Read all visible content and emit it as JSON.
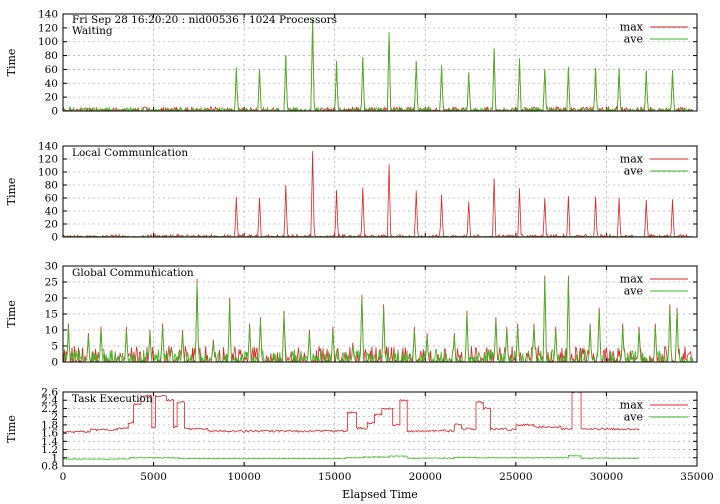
{
  "figure_title": "Fri Sep 28 16:20:20 : nid00536 : 1024 Processors",
  "chart_data": [
    {
      "type": "line",
      "title": "Waiting",
      "xlabel": "",
      "ylabel": "Time",
      "xlim": [
        0,
        35000
      ],
      "ylim": [
        0,
        140
      ],
      "yticks": [
        0,
        20,
        40,
        60,
        80,
        100,
        120,
        140
      ],
      "legend": "top-right",
      "grid": true,
      "series": [
        {
          "name": "max",
          "color": "#d62728",
          "profile": "spikes",
          "baseline": [
            0,
            6
          ],
          "peaks": [
            [
              9570,
              62
            ],
            [
              10850,
              60
            ],
            [
              12300,
              80
            ],
            [
              13780,
              132
            ],
            [
              15100,
              72
            ],
            [
              16550,
              77
            ],
            [
              18000,
              113
            ],
            [
              19500,
              72
            ],
            [
              20900,
              65
            ],
            [
              22400,
              55
            ],
            [
              23800,
              90
            ],
            [
              25200,
              75
            ],
            [
              26600,
              60
            ],
            [
              27900,
              63
            ],
            [
              29400,
              62
            ],
            [
              30700,
              61
            ],
            [
              32200,
              58
            ],
            [
              33650,
              58
            ]
          ]
        },
        {
          "name": "ave",
          "color": "#3ab820",
          "profile": "spikes",
          "baseline": [
            0,
            5
          ],
          "peaks": [
            [
              9570,
              63
            ],
            [
              10850,
              60
            ],
            [
              12300,
              81
            ],
            [
              13780,
              133
            ],
            [
              15100,
              72
            ],
            [
              16550,
              78
            ],
            [
              18000,
              114
            ],
            [
              19500,
              72
            ],
            [
              20900,
              66
            ],
            [
              22400,
              56
            ],
            [
              23800,
              91
            ],
            [
              25200,
              76
            ],
            [
              26600,
              60
            ],
            [
              27900,
              64
            ],
            [
              29400,
              62
            ],
            [
              30700,
              62
            ],
            [
              32200,
              58
            ],
            [
              33650,
              59
            ]
          ]
        }
      ]
    },
    {
      "type": "line",
      "title": "Local Communication",
      "xlabel": "",
      "ylabel": "Time",
      "xlim": [
        0,
        35000
      ],
      "ylim": [
        0,
        140
      ],
      "yticks": [
        0,
        20,
        40,
        60,
        80,
        100,
        120,
        140
      ],
      "legend": "top-right",
      "grid": true,
      "series": [
        {
          "name": "max",
          "color": "#d62728",
          "profile": "spikes",
          "baseline": [
            0,
            4
          ],
          "peaks": [
            [
              9570,
              62
            ],
            [
              10850,
              60
            ],
            [
              12300,
              80
            ],
            [
              13780,
              132
            ],
            [
              15100,
              72
            ],
            [
              16550,
              76
            ],
            [
              18000,
              112
            ],
            [
              19500,
              71
            ],
            [
              20900,
              65
            ],
            [
              22400,
              55
            ],
            [
              23800,
              90
            ],
            [
              25200,
              75
            ],
            [
              26600,
              60
            ],
            [
              27900,
              63
            ],
            [
              29400,
              62
            ],
            [
              30700,
              60
            ],
            [
              32200,
              57
            ],
            [
              33650,
              58
            ]
          ]
        },
        {
          "name": "ave",
          "color": "#3ab820",
          "profile": "flat",
          "value": 0.5
        }
      ]
    },
    {
      "type": "line",
      "title": "Global Communication",
      "xlabel": "",
      "ylabel": "Time",
      "xlim": [
        0,
        35000
      ],
      "ylim": [
        0,
        30
      ],
      "yticks": [
        0,
        5,
        10,
        15,
        20,
        25,
        30
      ],
      "legend": "top-right",
      "grid": true,
      "series": [
        {
          "name": "max",
          "color": "#d62728",
          "profile": "spikes",
          "baseline": [
            0,
            5
          ],
          "peaks": [
            [
              300,
              12
            ],
            [
              1400,
              9
            ],
            [
              2100,
              11
            ],
            [
              3500,
              11
            ],
            [
              4800,
              10
            ],
            [
              5500,
              12
            ],
            [
              6600,
              10
            ],
            [
              7400,
              26
            ],
            [
              8300,
              7
            ],
            [
              9200,
              20
            ],
            [
              10300,
              12
            ],
            [
              10900,
              14
            ],
            [
              12200,
              16
            ],
            [
              13600,
              10
            ],
            [
              14900,
              11
            ],
            [
              16000,
              6
            ],
            [
              16500,
              21
            ],
            [
              17700,
              18
            ],
            [
              19400,
              11
            ],
            [
              20100,
              9
            ],
            [
              21600,
              9
            ],
            [
              22300,
              16
            ],
            [
              23900,
              14
            ],
            [
              24500,
              11
            ],
            [
              25100,
              12
            ],
            [
              26000,
              12
            ],
            [
              26600,
              27
            ],
            [
              27200,
              11
            ],
            [
              27900,
              27
            ],
            [
              29100,
              12
            ],
            [
              29600,
              17
            ],
            [
              30900,
              12
            ],
            [
              31800,
              11
            ],
            [
              32700,
              12
            ],
            [
              33500,
              18
            ],
            [
              33900,
              17
            ]
          ]
        },
        {
          "name": "ave",
          "color": "#3ab820",
          "profile": "spikes",
          "baseline": [
            0,
            4
          ],
          "peaks": [
            [
              300,
              11
            ],
            [
              1400,
              8
            ],
            [
              2100,
              10
            ],
            [
              3500,
              10
            ],
            [
              4800,
              9
            ],
            [
              5500,
              11
            ],
            [
              6600,
              9
            ],
            [
              7400,
              25
            ],
            [
              8300,
              6
            ],
            [
              9200,
              19
            ],
            [
              10300,
              11
            ],
            [
              10900,
              13
            ],
            [
              12200,
              15
            ],
            [
              13600,
              9
            ],
            [
              14900,
              10
            ],
            [
              16000,
              5
            ],
            [
              16500,
              20
            ],
            [
              17700,
              17
            ],
            [
              19400,
              10
            ],
            [
              20100,
              8
            ],
            [
              21600,
              8
            ],
            [
              22300,
              15
            ],
            [
              23900,
              13
            ],
            [
              24500,
              10
            ],
            [
              25100,
              11
            ],
            [
              26000,
              11
            ],
            [
              26600,
              26
            ],
            [
              27200,
              10
            ],
            [
              27900,
              26
            ],
            [
              29100,
              11
            ],
            [
              29600,
              16
            ],
            [
              30900,
              11
            ],
            [
              31800,
              10
            ],
            [
              32700,
              11
            ],
            [
              33500,
              17
            ],
            [
              33900,
              16
            ]
          ]
        }
      ]
    },
    {
      "type": "line",
      "title": "Task Execution",
      "xlabel": "Elapsed Time",
      "ylabel": "Time",
      "xlim": [
        0,
        35000
      ],
      "ylim": [
        0.8,
        2.6
      ],
      "yticks": [
        0.8,
        1,
        1.2,
        1.4,
        1.6,
        1.8,
        2,
        2.2,
        2.4,
        2.6
      ],
      "xticks": [
        0,
        5000,
        10000,
        15000,
        20000,
        25000,
        30000,
        35000
      ],
      "legend": "top-right",
      "grid": true,
      "series": [
        {
          "name": "max",
          "color": "#d62728",
          "profile": "steps",
          "noise": 0.025,
          "steps": [
            [
              0,
              1.63
            ],
            [
              1500,
              1.68
            ],
            [
              3000,
              1.72
            ],
            [
              3600,
              1.85
            ],
            [
              3900,
              2.3
            ],
            [
              4300,
              2.5
            ],
            [
              4900,
              1.75
            ],
            [
              5100,
              2.5
            ],
            [
              5700,
              2.4
            ],
            [
              6100,
              1.75
            ],
            [
              6300,
              2.35
            ],
            [
              6700,
              1.7
            ],
            [
              8000,
              1.65
            ],
            [
              15500,
              1.65
            ],
            [
              15700,
              2.1
            ],
            [
              16200,
              1.72
            ],
            [
              16800,
              1.85
            ],
            [
              17200,
              2.05
            ],
            [
              17600,
              2.2
            ],
            [
              18200,
              1.8
            ],
            [
              18600,
              2.4
            ],
            [
              19000,
              1.65
            ],
            [
              21000,
              1.66
            ],
            [
              21600,
              1.8
            ],
            [
              22000,
              1.7
            ],
            [
              22800,
              2.35
            ],
            [
              23200,
              2.2
            ],
            [
              23600,
              1.7
            ],
            [
              24500,
              1.68
            ],
            [
              25000,
              1.8
            ],
            [
              26000,
              1.75
            ],
            [
              27500,
              1.7
            ],
            [
              28100,
              2.6
            ],
            [
              28600,
              1.7
            ],
            [
              31800,
              1.7
            ]
          ]
        },
        {
          "name": "ave",
          "color": "#3ab820",
          "profile": "steps",
          "noise": 0.008,
          "steps": [
            [
              0,
              0.97
            ],
            [
              3700,
              1.0
            ],
            [
              6400,
              0.98
            ],
            [
              15600,
              1.0
            ],
            [
              16600,
              1.02
            ],
            [
              18000,
              1.04
            ],
            [
              19000,
              0.99
            ],
            [
              21600,
              1.01
            ],
            [
              22800,
              1.0
            ],
            [
              27900,
              1.05
            ],
            [
              28600,
              0.99
            ],
            [
              31800,
              0.99
            ]
          ]
        }
      ]
    }
  ]
}
